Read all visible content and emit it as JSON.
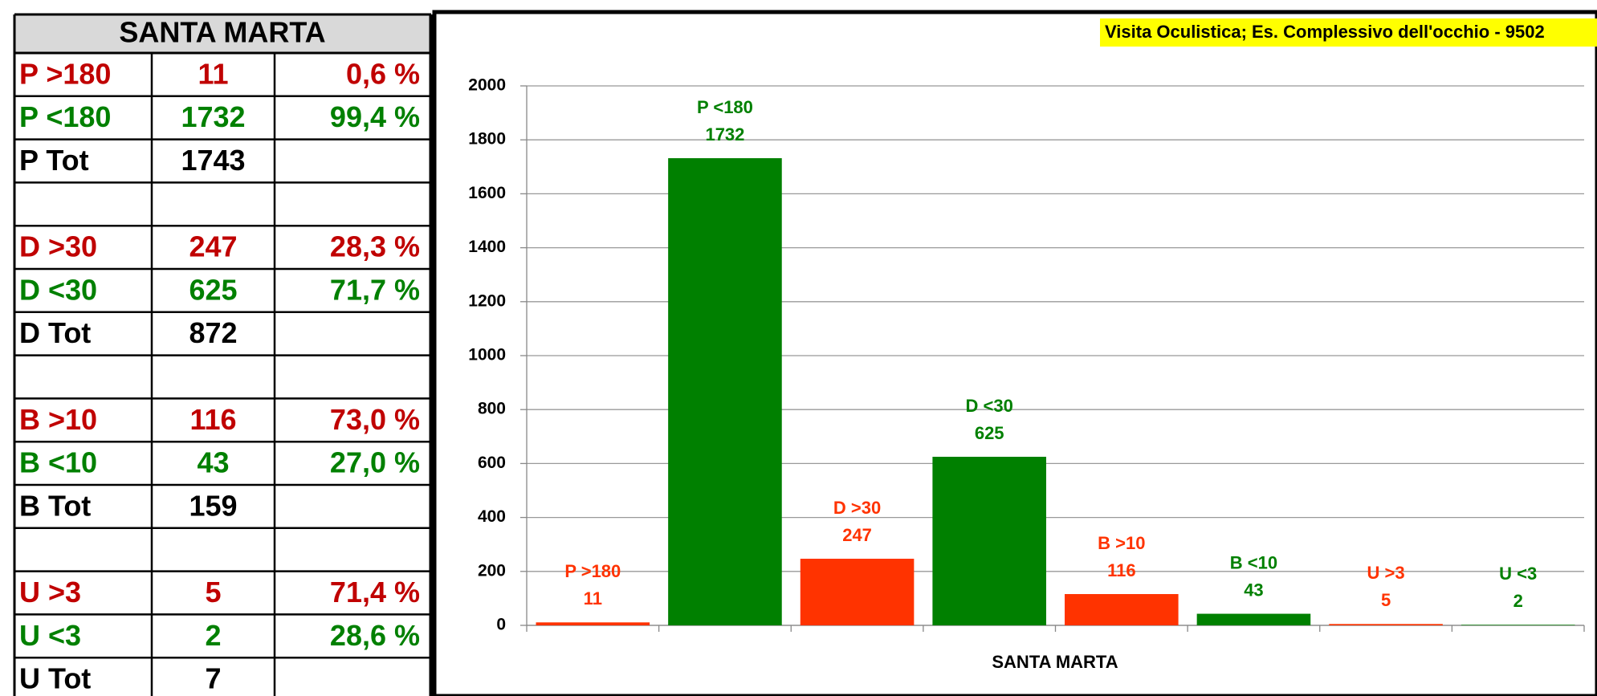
{
  "table": {
    "title": "SANTA MARTA",
    "rows": [
      {
        "cells": [
          "P  >180",
          "11",
          "0,6 %"
        ],
        "color": "#c00000"
      },
      {
        "cells": [
          "P  <180",
          "1732",
          "99,4 %"
        ],
        "color": "#008000"
      },
      {
        "cells": [
          "P  Tot",
          "1743"
        ],
        "color": "#000000"
      },
      {
        "cells": []
      },
      {
        "cells": [
          "D  >30",
          "247",
          "28,3 %"
        ],
        "color": "#c00000"
      },
      {
        "cells": [
          "D  <30",
          "625",
          "71,7 %"
        ],
        "color": "#008000"
      },
      {
        "cells": [
          "D  Tot",
          "872"
        ],
        "color": "#000000"
      },
      {
        "cells": []
      },
      {
        "cells": [
          "B  >10",
          "116",
          "73,0 %"
        ],
        "color": "#c00000"
      },
      {
        "cells": [
          "B  <10",
          "43",
          "27,0 %"
        ],
        "color": "#008000"
      },
      {
        "cells": [
          "B  Tot",
          "159"
        ],
        "color": "#000000"
      },
      {
        "cells": []
      },
      {
        "cells": [
          "U  >3",
          "5",
          "71,4 %"
        ],
        "color": "#c00000"
      },
      {
        "cells": [
          "U  <3",
          "2",
          "28,6 %"
        ],
        "color": "#008000"
      },
      {
        "cells": [
          "U  Tot",
          "7"
        ],
        "color": "#000000"
      }
    ]
  },
  "chart_data": {
    "type": "bar",
    "title": "Visita Oculistica; Es. Complessivo dell'occhio - 9502",
    "x_label": "SANTA MARTA",
    "categories": [
      "P  >180",
      "P  <180",
      "D  >30",
      "D  <30",
      "B  >10",
      "B  <10",
      "U  >3",
      "U  <3"
    ],
    "values": [
      11,
      1732,
      247,
      625,
      116,
      43,
      5,
      2
    ],
    "colors": [
      "#ff3300",
      "#008000",
      "#ff3300",
      "#008000",
      "#ff3300",
      "#008000",
      "#ff3300",
      "#008000"
    ],
    "ylim": [
      0,
      2000
    ],
    "yticks": [
      0,
      200,
      400,
      600,
      800,
      1000,
      1200,
      1400,
      1600,
      1800,
      2000
    ],
    "grid": true
  }
}
